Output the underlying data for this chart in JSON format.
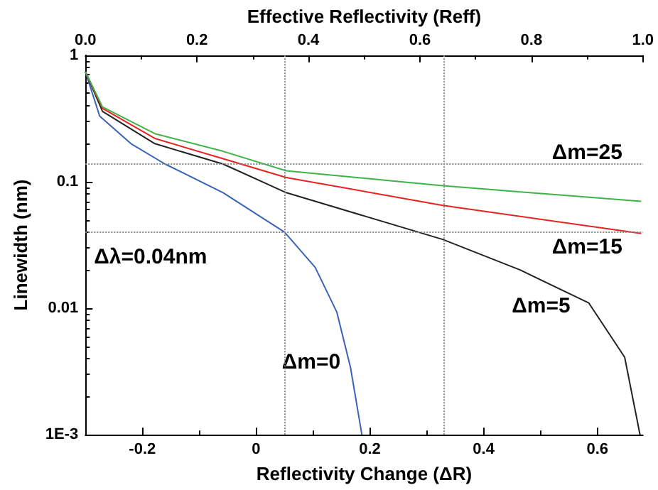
{
  "chart_data": {
    "type": "line",
    "xlabel": "Reflectivity Change (ΔR)",
    "x2label": "Effective Reflectivity (Reff)",
    "ylabel": "Linewidth (nm)",
    "xlim": [
      -0.3,
      0.68
    ],
    "xticks": [
      -0.2,
      0.0,
      0.2,
      0.4,
      0.6
    ],
    "x2lim": [
      0.0,
      1.0
    ],
    "x2ticks": [
      {
        "value": 0,
        "label": "0.0"
      },
      0.2,
      0.4,
      0.6,
      0.8,
      {
        "value": 1,
        "label": "1.0"
      }
    ],
    "ylim": [
      0.001,
      1
    ],
    "yticks": [
      1,
      0.1,
      0.01,
      {
        "value": 0.001,
        "label": "1E-3"
      }
    ],
    "log": "y",
    "grid": false,
    "legend": false,
    "marker": "none",
    "line_style": "solid",
    "series": [
      {
        "name": "Δm=0",
        "color": "#3a62b8",
        "x": [
          -0.3,
          -0.275,
          -0.22,
          -0.16,
          -0.058,
          0.05,
          0.104,
          0.142,
          0.166,
          0.186
        ],
        "values": [
          0.74,
          0.33,
          0.2,
          0.138,
          0.082,
          0.04,
          0.021,
          0.0093,
          0.0034,
          0.001
        ]
      },
      {
        "name": "Δm=5",
        "color": "#222222",
        "x": [
          -0.3,
          -0.27,
          -0.178,
          -0.058,
          0.053,
          0.328,
          0.465,
          0.585,
          0.648,
          0.675
        ],
        "values": [
          0.74,
          0.36,
          0.2,
          0.138,
          0.082,
          0.035,
          0.02,
          0.011,
          0.0041,
          0.001
        ]
      },
      {
        "name": "Δm=15",
        "color": "#e8231f",
        "x": [
          -0.3,
          -0.27,
          -0.178,
          -0.058,
          0.053,
          0.328,
          0.677
        ],
        "values": [
          0.74,
          0.38,
          0.22,
          0.152,
          0.108,
          0.065,
          0.039
        ]
      },
      {
        "name": "Δm=25",
        "color": "#3fb34a",
        "x": [
          -0.3,
          -0.27,
          -0.178,
          -0.058,
          0.053,
          0.328,
          0.677
        ],
        "values": [
          0.74,
          0.39,
          0.24,
          0.174,
          0.122,
          0.093,
          0.07
        ]
      }
    ],
    "ref_lines": [
      {
        "axis": "x",
        "value": 0.05,
        "color": "#888888",
        "line_style": "dotted"
      },
      {
        "axis": "x",
        "value": 0.33,
        "color": "#888888",
        "line_style": "dotted"
      },
      {
        "axis": "y",
        "value": 0.14,
        "color": "#888888",
        "line_style": "dotted"
      },
      {
        "axis": "y",
        "value": 0.04,
        "color": "#888888",
        "line_style": "dotted",
        "label": "Δλ=0.04nm"
      }
    ]
  }
}
